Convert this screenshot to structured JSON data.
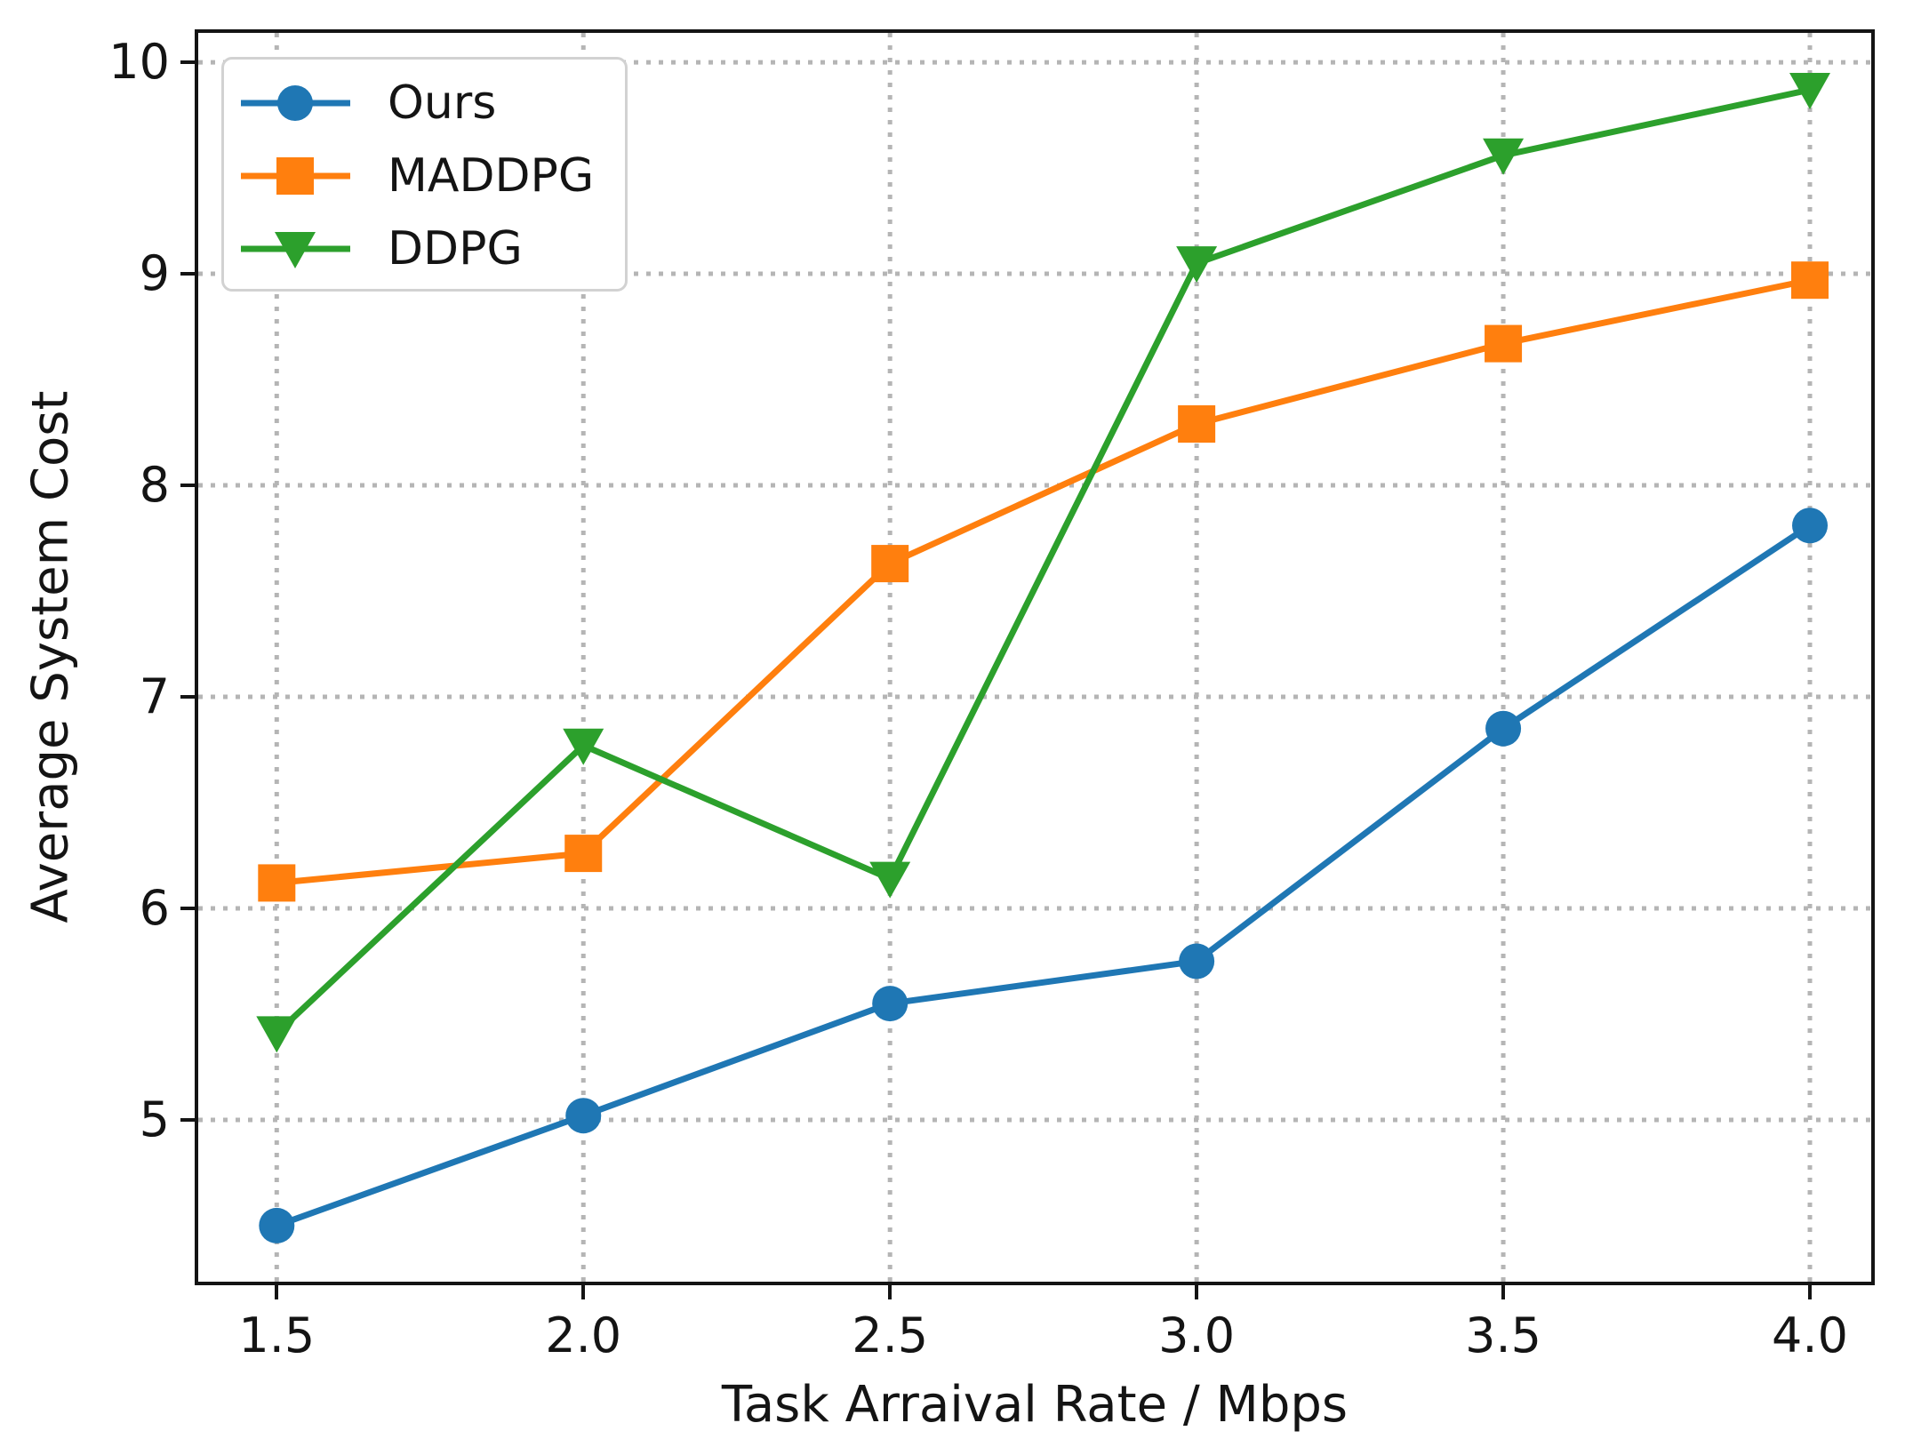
{
  "page": {
    "background": "#ffffff"
  },
  "chart_data": {
    "type": "line",
    "title": "",
    "xlabel": "Task Arraival Rate / Mbps",
    "ylabel": "Average System Cost",
    "x": [
      1.5,
      2.0,
      2.5,
      3.0,
      3.5,
      4.0
    ],
    "x_tick_labels": [
      "1.5",
      "2.0",
      "2.5",
      "3.0",
      "3.5",
      "4.0"
    ],
    "y_ticks": [
      5,
      6,
      7,
      8,
      9,
      10
    ],
    "y_tick_labels": [
      "5",
      "6",
      "7",
      "8",
      "9",
      "10"
    ],
    "xlim": [
      1.372,
      4.1
    ],
    "ylim": [
      4.235,
      10.139
    ],
    "grid": {
      "visible": true,
      "style": "dotted",
      "color": "#b5b5b5"
    },
    "axis_color": "#141414",
    "legend_position": "upper-left",
    "legend_border_color": "#d2d2d2",
    "series": [
      {
        "name": "Ours",
        "color": "#1f77b4",
        "marker": "circle",
        "values": [
          4.5,
          5.02,
          5.55,
          5.75,
          6.85,
          7.81
        ]
      },
      {
        "name": "MADDPG",
        "color": "#ff7f0e",
        "marker": "square",
        "values": [
          6.12,
          6.26,
          7.63,
          8.29,
          8.67,
          8.97
        ]
      },
      {
        "name": "DDPG",
        "color": "#2ca02c",
        "marker": "triangle-down",
        "values": [
          5.41,
          6.77,
          6.14,
          9.05,
          9.56,
          9.87
        ]
      }
    ]
  }
}
